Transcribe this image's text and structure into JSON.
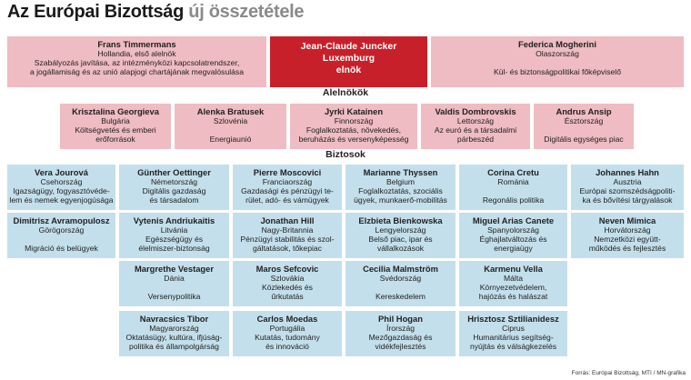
{
  "title": {
    "main": "Az Európai Bizottság",
    "sub": "új összetétele"
  },
  "president": {
    "lines": [
      "Jean-Claude Juncker",
      "Luxemburg",
      "elnök"
    ]
  },
  "top_left": {
    "name": "Frans Timmermans",
    "lines": [
      "Hollandia, első alelnök",
      "Szabályozás javítása, az intézményközi kapcsolatrendszer,",
      "a jogállamiság és az unió alapjogi chartájának megvalósulása"
    ]
  },
  "top_right": {
    "name": "Federica Mogherini",
    "lines": [
      "Olaszország",
      "",
      "Kül- és biztonságpolitikai főképviselő"
    ]
  },
  "vp_label": "Alelnökök",
  "vps": [
    {
      "name": "Krisztalina Georgieva",
      "lines": [
        "Bulgária",
        "Költségvetés és emberi",
        "erőforrások"
      ]
    },
    {
      "name": "Alenka Bratusek",
      "lines": [
        "Szlovénia",
        "",
        "Energiaunió"
      ]
    },
    {
      "name": "Jyrki Katainen",
      "lines": [
        "Finnország",
        "Foglalkoztatás, növekedés,",
        "beruházás és versenyképesség"
      ]
    },
    {
      "name": "Valdis Dombrovskis",
      "lines": [
        "Lettország",
        "Az euró és a társadalmi",
        "párbeszéd"
      ]
    },
    {
      "name": "Andrus Ansip",
      "lines": [
        "Észtország",
        "",
        "Digitális egységes piac"
      ]
    }
  ],
  "comm_label": "Biztosok",
  "commissioners": [
    {
      "name": "Vera Jourová",
      "lines": [
        "Csehország",
        "Igazságügy, fogyasztóvéde-",
        "lem és nemek egyenjogúsága"
      ]
    },
    {
      "name": "Günther Oettinger",
      "lines": [
        "Németország",
        "Digitális gazdaság",
        "és társadalom"
      ]
    },
    {
      "name": "Pierre Moscovici",
      "lines": [
        "Franciaország",
        "Gazdasági és pénzügyi te-",
        "rület, adó- és vámügyek"
      ]
    },
    {
      "name": "Marianne Thyssen",
      "lines": [
        "Belgium",
        "Foglalkoztatás, szociális",
        "ügyek, munkaerő-mobilitás"
      ]
    },
    {
      "name": "Corina Cretu",
      "lines": [
        "Románia",
        "",
        "Regonális politika"
      ]
    },
    {
      "name": "Johannes Hahn",
      "lines": [
        "Ausztria",
        "Európai szomszédságpoliti-",
        "ka és bővítési tárgyalások"
      ]
    },
    {
      "name": "Dimitrisz Avramopulosz",
      "lines": [
        "Görögország",
        "",
        "Migráció és belügyek"
      ]
    },
    {
      "name": "Vytenis Andriukaitis",
      "lines": [
        "Litvánia",
        "Egészségügy és",
        "élelmiszer-biztonság"
      ]
    },
    {
      "name": "Jonathan Hill",
      "lines": [
        "Nagy-Britannia",
        "Pénzügyi stabilitás és szol-",
        "gáltatások, tőkepiac"
      ]
    },
    {
      "name": "Elzbieta Bienkowska",
      "lines": [
        "Lengyelország",
        "Belső piac, ipar és",
        "vállalkozások"
      ]
    },
    {
      "name": "Miguel Arias Canete",
      "lines": [
        "Spanyolország",
        "Éghajlatváltozás és",
        "energiaügy"
      ]
    },
    {
      "name": "Neven Mimica",
      "lines": [
        "Horvátország",
        "Nemzetközi együtt-",
        "működés és fejlesztés"
      ]
    },
    {
      "name": "Margrethe Vestager",
      "lines": [
        "Dánia",
        "",
        "Versenypolitika"
      ]
    },
    {
      "name": "Maros Sefcovic",
      "lines": [
        "Szlovákia",
        "Közlekedés és",
        "űrkutatás"
      ]
    },
    {
      "name": "Cecilia Malmström",
      "lines": [
        "Svédország",
        "",
        "Kereskedelem"
      ]
    },
    {
      "name": "Karmenu Vella",
      "lines": [
        "Málta",
        "Környezetvédelem,",
        "hajózás és halászat"
      ]
    },
    {
      "name": "Navracsics Tibor",
      "lines": [
        "Magyarország",
        "Oktatásügy, kultúra, ifjúság-",
        "politika és állampolgárság"
      ]
    },
    {
      "name": "Carlos Moedas",
      "lines": [
        "Portugália",
        "Kutatás, tudomány",
        "és innováció"
      ]
    },
    {
      "name": "Phil Hogan",
      "lines": [
        "Írország",
        "Mezőgazdaság és",
        "vidékfejlesztés"
      ]
    },
    {
      "name": "Hrisztosz Sztilianidesz",
      "lines": [
        "Ciprus",
        "Humanitárius segítség-",
        "nyújtás és válságkezelés"
      ]
    }
  ],
  "source": "Forrás: Európai Bizottság, MTI / MN-grafika"
}
